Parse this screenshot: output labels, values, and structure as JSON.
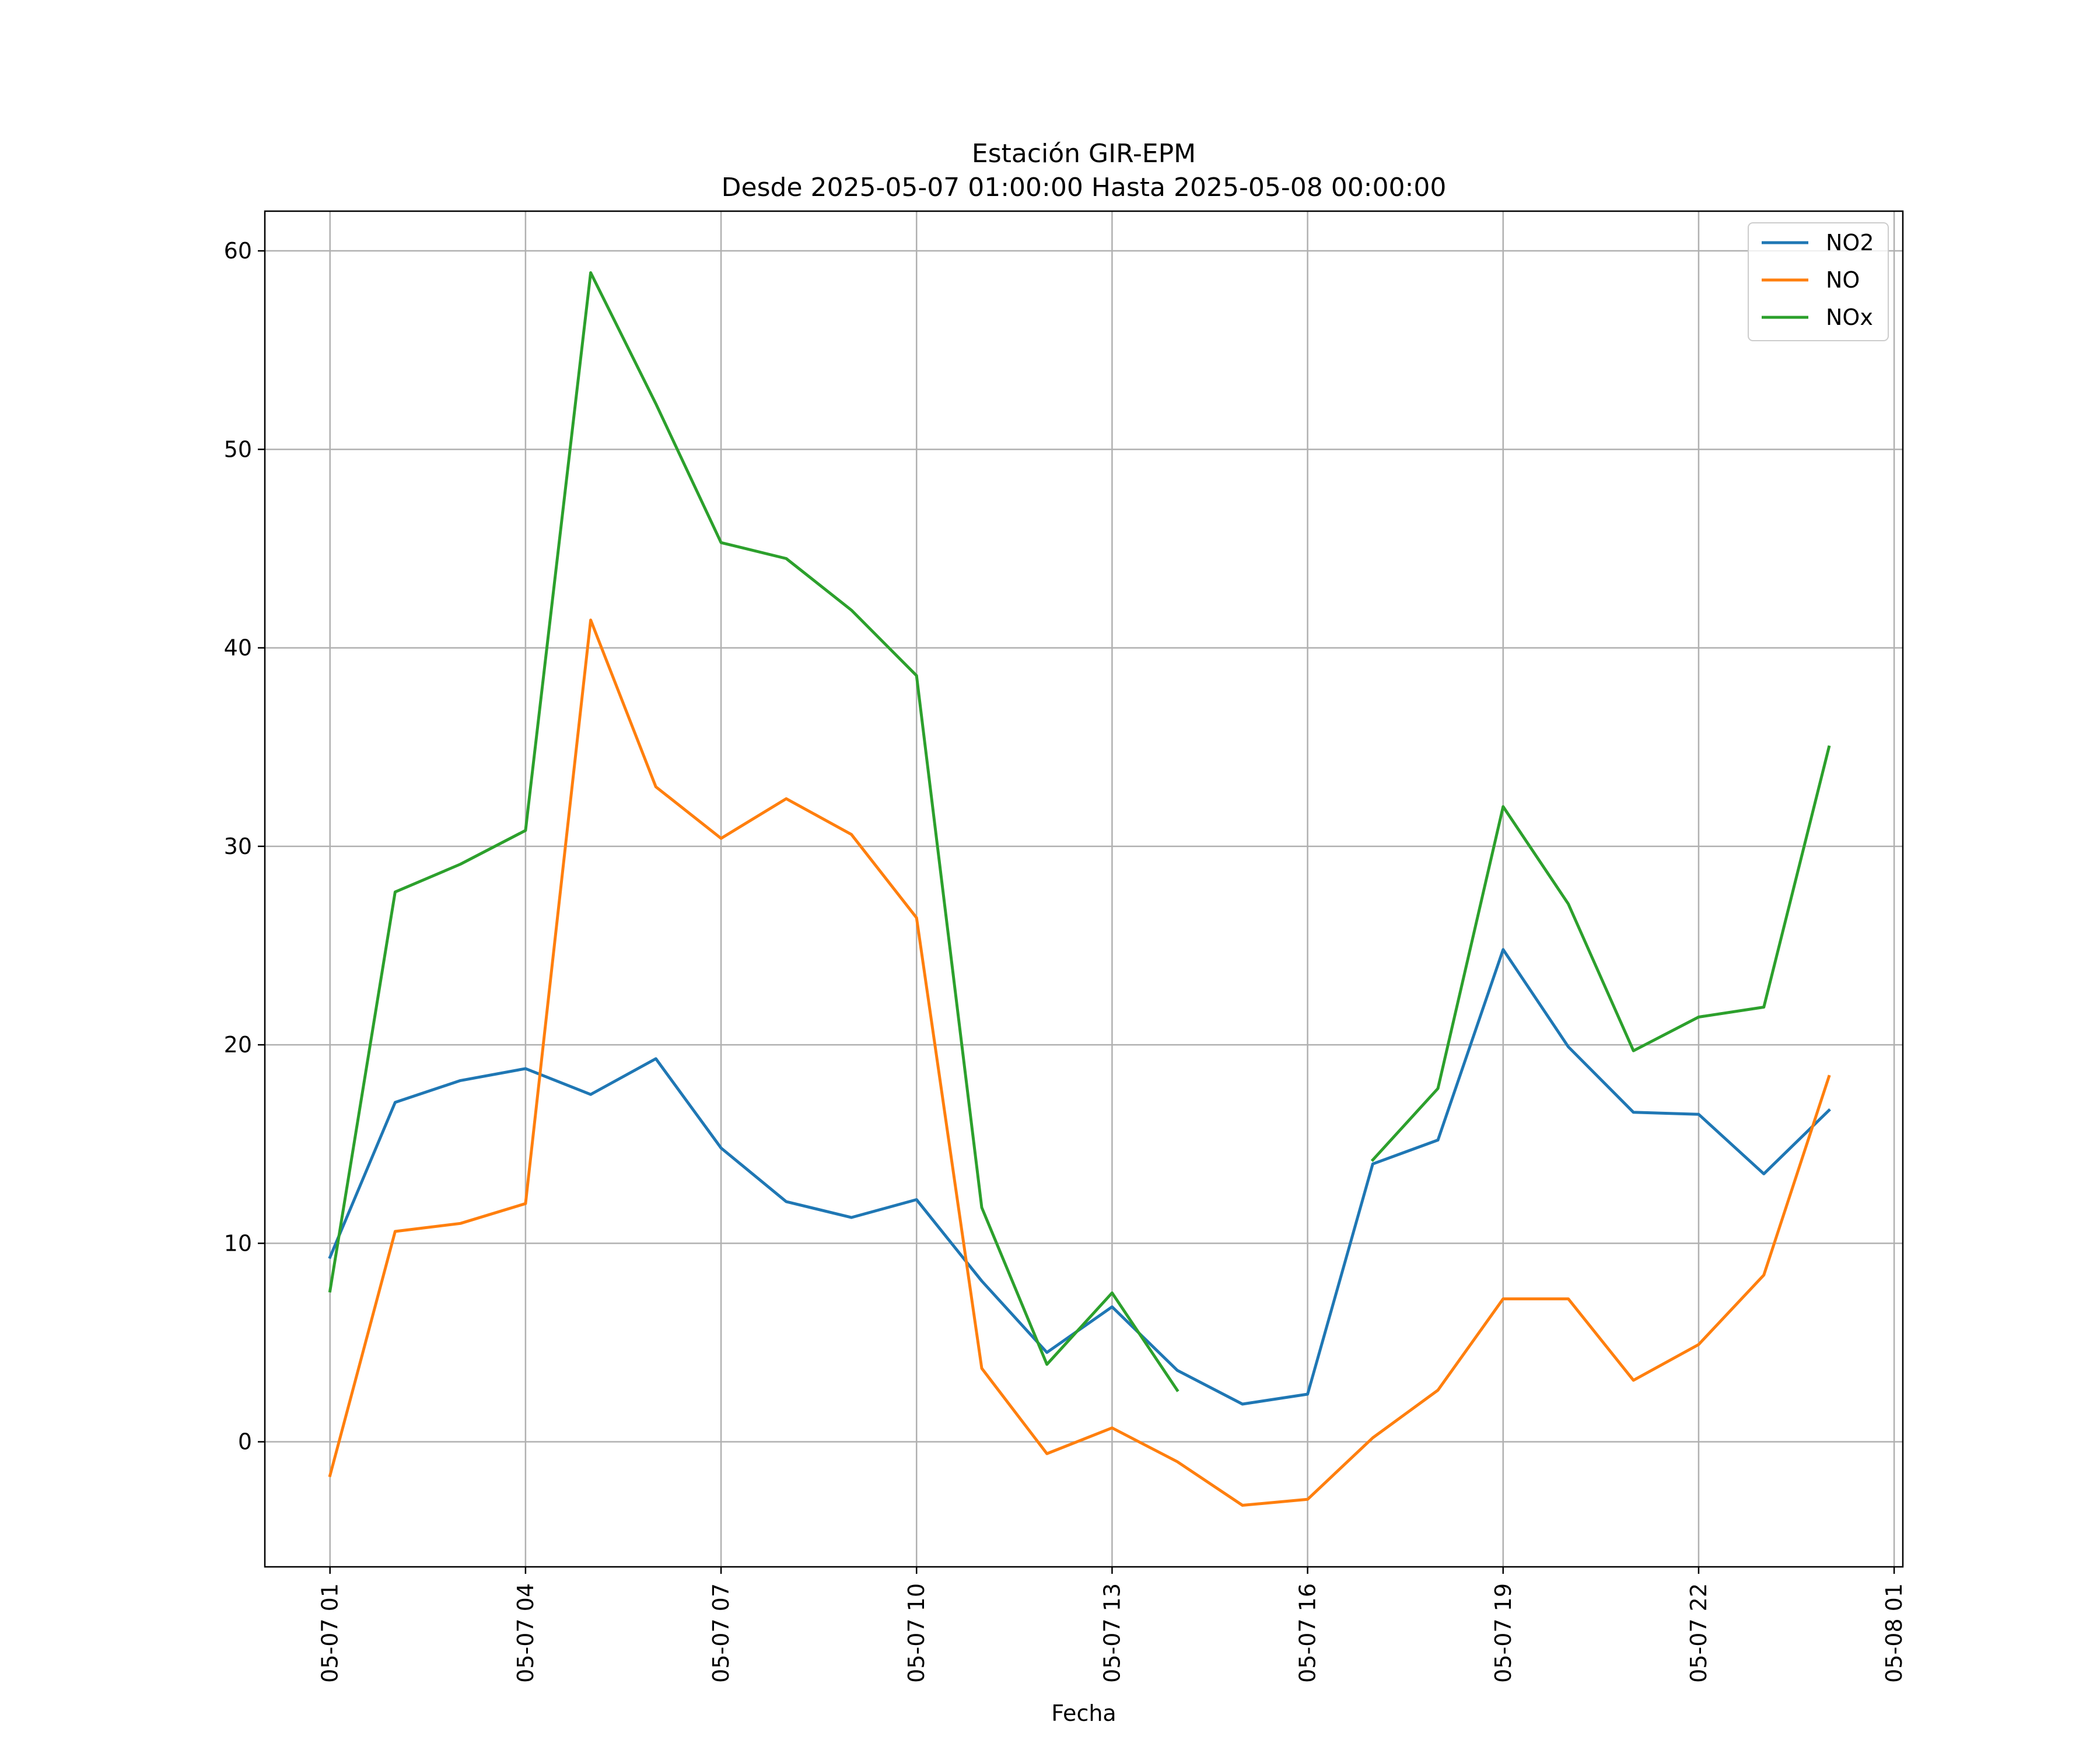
{
  "chart_data": {
    "type": "line",
    "title": "Estación GIR-EPM",
    "subtitle": "Desde 2025-05-07 01:00:00 Hasta 2025-05-08 00:00:00",
    "xlabel": "Fecha",
    "ylabel": "",
    "grid": true,
    "legend_position": "top-right",
    "x": [
      "2025-05-07 01:00",
      "2025-05-07 02:00",
      "2025-05-07 03:00",
      "2025-05-07 04:00",
      "2025-05-07 05:00",
      "2025-05-07 06:00",
      "2025-05-07 07:00",
      "2025-05-07 08:00",
      "2025-05-07 09:00",
      "2025-05-07 10:00",
      "2025-05-07 11:00",
      "2025-05-07 12:00",
      "2025-05-07 13:00",
      "2025-05-07 14:00",
      "2025-05-07 15:00",
      "2025-05-07 16:00",
      "2025-05-07 17:00",
      "2025-05-07 18:00",
      "2025-05-07 19:00",
      "2025-05-07 20:00",
      "2025-05-07 21:00",
      "2025-05-07 22:00",
      "2025-05-07 23:00",
      "2025-05-08 00:00"
    ],
    "xlim": [
      "2025-05-07 00:00",
      "2025-05-08 01:08"
    ],
    "xtick_labels": [
      "05-07 01",
      "05-07 04",
      "05-07 07",
      "05-07 10",
      "05-07 13",
      "05-07 16",
      "05-07 19",
      "05-07 22",
      "05-08 01"
    ],
    "xtick_values": [
      "2025-05-07 01:00",
      "2025-05-07 04:00",
      "2025-05-07 07:00",
      "2025-05-07 10:00",
      "2025-05-07 13:00",
      "2025-05-07 16:00",
      "2025-05-07 19:00",
      "2025-05-07 22:00",
      "2025-05-08 01:00"
    ],
    "ylim": [
      -6.3,
      62
    ],
    "yticks": [
      0,
      10,
      20,
      30,
      40,
      50,
      60
    ],
    "series": [
      {
        "name": "NO2",
        "color": "#1f77b4",
        "values": [
          9.3,
          17.1,
          18.2,
          18.8,
          17.5,
          19.3,
          14.8,
          12.1,
          11.3,
          12.2,
          8.1,
          4.5,
          6.8,
          3.6,
          1.9,
          2.4,
          14.0,
          15.2,
          24.8,
          19.9,
          16.6,
          16.5,
          13.5,
          16.7
        ]
      },
      {
        "name": "NO",
        "color": "#ff7f0e",
        "values": [
          -1.7,
          10.6,
          11.0,
          12.0,
          41.4,
          33.0,
          30.4,
          32.4,
          30.6,
          26.4,
          3.7,
          -0.6,
          0.7,
          -1.0,
          -3.2,
          -2.9,
          0.2,
          2.6,
          7.2,
          7.2,
          3.1,
          4.9,
          8.4,
          18.4
        ]
      },
      {
        "name": "NOx",
        "color": "#2ca02c",
        "values": [
          7.6,
          27.7,
          29.1,
          30.8,
          58.9,
          52.3,
          45.3,
          44.5,
          41.9,
          38.6,
          11.8,
          3.9,
          7.5,
          2.6,
          null,
          null,
          14.2,
          17.8,
          32.0,
          27.1,
          19.7,
          21.4,
          21.9,
          35.0
        ]
      }
    ]
  }
}
